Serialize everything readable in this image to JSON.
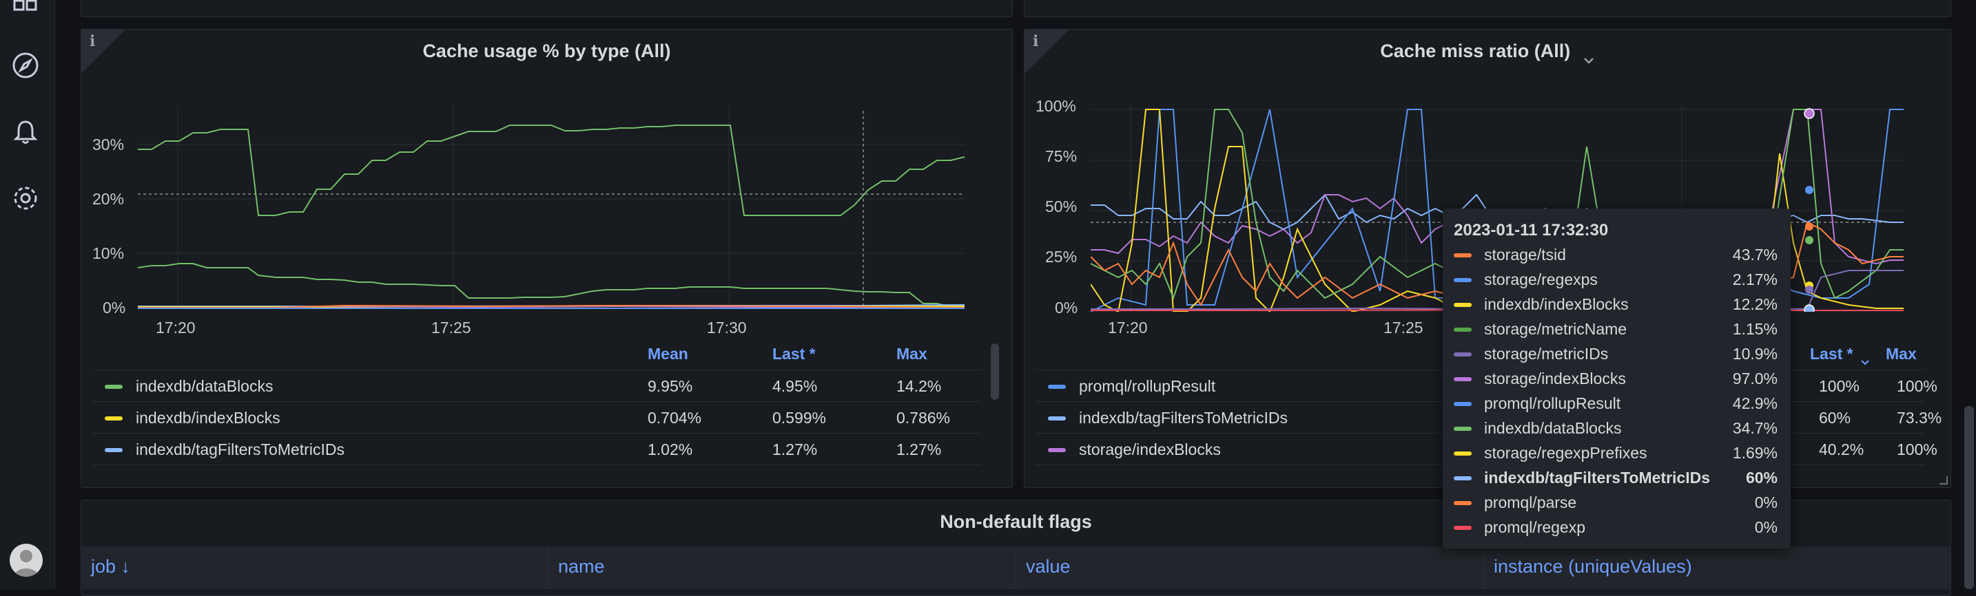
{
  "sidebar": {
    "icons": [
      "dashboards-icon",
      "explore-icon",
      "alerting-icon",
      "settings-icon",
      "avatar"
    ]
  },
  "panel_left": {
    "title": "Cache usage % by type (All)",
    "y_ticks": [
      "30%",
      "20%",
      "10%",
      "0%"
    ],
    "x_ticks": [
      "17:20",
      "17:25",
      "17:30"
    ],
    "legend_headers": {
      "mean": "Mean",
      "last": "Last *",
      "max": "Max"
    },
    "legend": [
      {
        "name": "indexdb/dataBlocks",
        "color": "#73bf69",
        "mean": "9.95%",
        "last": "4.95%",
        "max": "14.2%"
      },
      {
        "name": "indexdb/indexBlocks",
        "color": "#fade2a",
        "mean": "0.704%",
        "last": "0.599%",
        "max": "0.786%"
      },
      {
        "name": "indexdb/tagFiltersToMetricIDs",
        "color": "#8ab8ff",
        "mean": "1.02%",
        "last": "1.27%",
        "max": "1.27%"
      }
    ]
  },
  "panel_right": {
    "title": "Cache miss ratio (All)",
    "y_ticks": [
      "100%",
      "75%",
      "50%",
      "25%",
      "0%"
    ],
    "x_ticks": [
      "17:20",
      "17:25"
    ],
    "legend_headers": {
      "last": "Last *",
      "max": "Max"
    },
    "legend": [
      {
        "name": "promql/rollupResult",
        "color": "#5794f2",
        "last": "100%",
        "max": "100%"
      },
      {
        "name": "indexdb/tagFiltersToMetricIDs",
        "color": "#8ab8ff",
        "last": "60%",
        "max": "73.3%"
      },
      {
        "name": "storage/indexBlocks",
        "color": "#b877d9",
        "last": "40.2%",
        "max": "100%"
      }
    ]
  },
  "tooltip": {
    "time": "2023-01-11 17:32:30",
    "rows": [
      {
        "name": "storage/tsid",
        "value": "43.7%",
        "color": "#ff7f3f"
      },
      {
        "name": "storage/regexps",
        "value": "2.17%",
        "color": "#5794f2"
      },
      {
        "name": "indexdb/indexBlocks",
        "value": "12.2%",
        "color": "#fade2a"
      },
      {
        "name": "storage/metricName",
        "value": "1.15%",
        "color": "#56a64b"
      },
      {
        "name": "storage/metricIDs",
        "value": "10.9%",
        "color": "#806eb7"
      },
      {
        "name": "storage/indexBlocks",
        "value": "97.0%",
        "color": "#b877d9"
      },
      {
        "name": "promql/rollupResult",
        "value": "42.9%",
        "color": "#5794f2"
      },
      {
        "name": "indexdb/dataBlocks",
        "value": "34.7%",
        "color": "#73bf69"
      },
      {
        "name": "storage/regexpPrefixes",
        "value": "1.69%",
        "color": "#fade2a"
      },
      {
        "name": "indexdb/tagFiltersToMetricIDs",
        "value": "60%",
        "color": "#8ab8ff",
        "bold": true
      },
      {
        "name": "promql/parse",
        "value": "0%",
        "color": "#ff7f3f"
      },
      {
        "name": "promql/regexp",
        "value": "0%",
        "color": "#f2495c"
      }
    ]
  },
  "flags_panel": {
    "title": "Non-default flags",
    "columns": [
      "job ↓",
      "name",
      "value",
      "instance (uniqueValues)"
    ]
  }
}
